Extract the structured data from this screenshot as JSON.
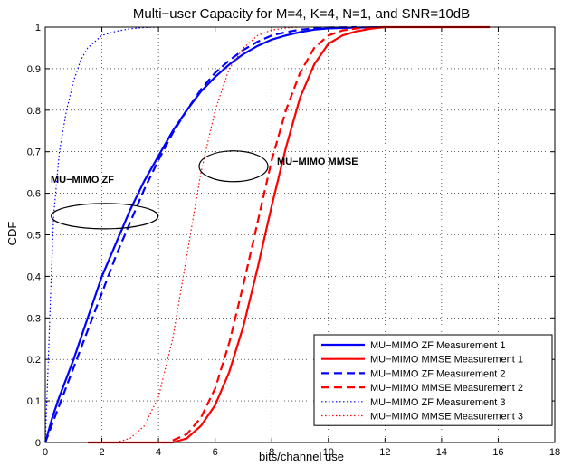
{
  "chart_data": {
    "type": "line",
    "title": "Multi−user Capacity for M=4, K=4, N=1, and SNR=10dB",
    "xlabel": "bits/channel use",
    "ylabel": "CDF",
    "xlim": [
      0,
      18
    ],
    "ylim": [
      0,
      1
    ],
    "xticks": [
      "0",
      "2",
      "4",
      "6",
      "8",
      "10",
      "12",
      "14",
      "16",
      "18"
    ],
    "yticks": [
      "0",
      "0.1",
      "0.2",
      "0.3",
      "0.4",
      "0.5",
      "0.6",
      "0.7",
      "0.8",
      "0.9",
      "1"
    ],
    "grid": true,
    "legend_position": "bottom-right",
    "annotations": [
      {
        "text": "MU−MIMO ZF",
        "ellipse_center": [
          2.1,
          0.545
        ]
      },
      {
        "text": "MU−MIMO MMSE",
        "ellipse_center": [
          6.65,
          0.665
        ]
      }
    ],
    "series": [
      {
        "name": "MU−MIMO ZF Measurement 1",
        "color": "#0000ff",
        "style": "solid",
        "x": [
          0,
          0.25,
          0.5,
          1,
          1.5,
          2,
          2.5,
          3,
          3.5,
          4,
          4.5,
          5,
          5.5,
          6,
          6.5,
          7,
          7.5,
          8,
          8.5,
          9,
          9.5,
          10,
          11,
          12
        ],
        "y": [
          0,
          0.06,
          0.11,
          0.2,
          0.3,
          0.4,
          0.48,
          0.56,
          0.63,
          0.69,
          0.75,
          0.8,
          0.845,
          0.88,
          0.91,
          0.935,
          0.955,
          0.97,
          0.98,
          0.988,
          0.994,
          0.997,
          0.999,
          1
        ]
      },
      {
        "name": "MU−MIMO MMSE Measurement 1",
        "color": "#ff0000",
        "style": "solid",
        "x": [
          1.5,
          4.5,
          5,
          5.5,
          6,
          6.5,
          7,
          7.5,
          8,
          8.5,
          9,
          9.5,
          10,
          10.5,
          11,
          11.5,
          12,
          13,
          14,
          15.7
        ],
        "y": [
          0,
          0,
          0.01,
          0.04,
          0.09,
          0.17,
          0.28,
          0.42,
          0.57,
          0.71,
          0.83,
          0.91,
          0.96,
          0.98,
          0.99,
          0.996,
          1,
          1,
          1,
          1
        ]
      },
      {
        "name": "MU−MIMO ZF Measurement 2",
        "color": "#0000ff",
        "style": "dashed",
        "x": [
          0,
          0.5,
          1,
          1.5,
          2,
          2.5,
          3,
          3.5,
          4,
          4.5,
          5,
          5.5,
          6,
          6.5,
          7,
          7.5,
          8,
          8.5,
          9,
          9.5,
          10,
          11
        ],
        "y": [
          0,
          0.09,
          0.18,
          0.27,
          0.36,
          0.45,
          0.53,
          0.61,
          0.68,
          0.745,
          0.8,
          0.85,
          0.89,
          0.92,
          0.945,
          0.965,
          0.98,
          0.988,
          0.994,
          0.997,
          0.999,
          1
        ]
      },
      {
        "name": "MU−MIMO MMSE Measurement 2",
        "color": "#ff0000",
        "style": "dashed",
        "x": [
          4.5,
          5,
          5.5,
          6,
          6.5,
          7,
          7.5,
          8,
          8.5,
          9,
          9.5,
          10,
          10.5,
          11,
          11.5,
          12
        ],
        "y": [
          0.005,
          0.02,
          0.06,
          0.13,
          0.24,
          0.38,
          0.53,
          0.68,
          0.8,
          0.89,
          0.95,
          0.98,
          0.992,
          0.997,
          0.999,
          1
        ]
      },
      {
        "name": "MU−MIMO ZF Measurement 3",
        "color": "#0000ff",
        "style": "dotted",
        "x": [
          0,
          0.1,
          0.2,
          0.3,
          0.5,
          0.75,
          1,
          1.25,
          1.5,
          2,
          2.5,
          3,
          3.5,
          4
        ],
        "y": [
          0,
          0.18,
          0.38,
          0.55,
          0.7,
          0.8,
          0.87,
          0.92,
          0.95,
          0.98,
          0.99,
          0.996,
          0.999,
          1
        ]
      },
      {
        "name": "MU−MIMO MMSE Measurement 3",
        "color": "#ff0000",
        "style": "dotted",
        "x": [
          2.5,
          3,
          3.5,
          4,
          4.5,
          5,
          5.5,
          6,
          6.5,
          7,
          7.5,
          8,
          8.5,
          9
        ],
        "y": [
          0,
          0.01,
          0.04,
          0.11,
          0.25,
          0.45,
          0.65,
          0.8,
          0.9,
          0.95,
          0.98,
          0.993,
          0.998,
          1
        ]
      }
    ]
  }
}
